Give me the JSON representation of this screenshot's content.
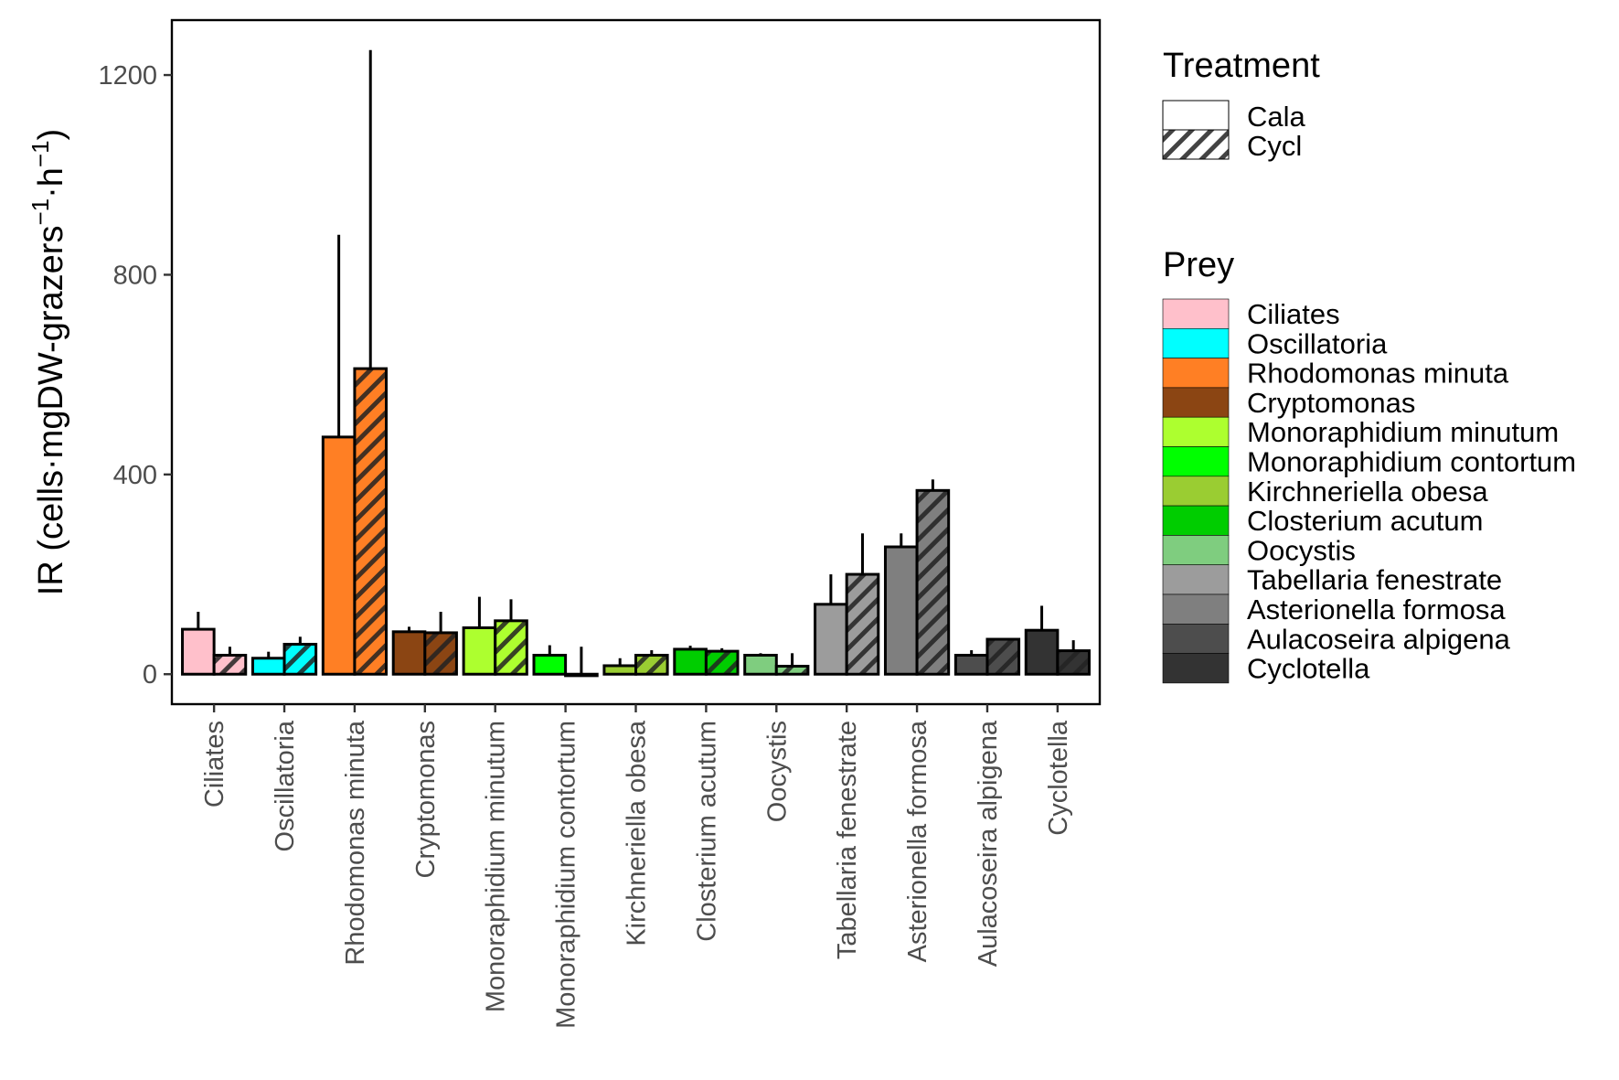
{
  "chart_data": {
    "type": "bar",
    "ylabel": "IR (cells·mgDW-grazers⁻¹·h⁻¹)",
    "ylabel_parts": {
      "main": "IR (cells·mgDW-grazers",
      "sup1": "−1",
      "mid": "·h",
      "sup2": "−1",
      "end": ")"
    },
    "ylim": [
      -60,
      1310
    ],
    "yticks": [
      0,
      400,
      800,
      1200
    ],
    "ytick_labels": [
      "0",
      "400",
      "800",
      "1200"
    ],
    "grid": false,
    "categories": [
      "Ciliates",
      "Oscillatoria",
      "Rhodomonas minuta",
      "Cryptomonas",
      "Monoraphidium minutum",
      "Monoraphidium contortum",
      "Kirchneriella obesa",
      "Closterium acutum",
      "Oocystis",
      "Tabellaria fenestrate",
      "Asterionella formosa",
      "Aulacoseira alpigena",
      "Cyclotella"
    ],
    "colors": [
      "#FFC0CB",
      "#00FFFF",
      "#FF7F24",
      "#8B4513",
      "#ADFF2F",
      "#00FF00",
      "#9ACD32",
      "#00CD00",
      "#7FCD7F",
      "#9C9C9C",
      "#7F7F7F",
      "#4D4D4D",
      "#333333"
    ],
    "series": [
      {
        "name": "Cala",
        "values": [
          90,
          32,
          475,
          85,
          93,
          38,
          17,
          50,
          38,
          140,
          255,
          38,
          88
        ],
        "err_upper": [
          125,
          45,
          880,
          95,
          155,
          58,
          32,
          57,
          42,
          200,
          282,
          48,
          137
        ]
      },
      {
        "name": "Cycl",
        "values": [
          38,
          60,
          612,
          83,
          107,
          -3,
          38,
          46,
          16,
          200,
          368,
          70,
          47
        ],
        "err_upper": [
          55,
          75,
          1250,
          125,
          150,
          55,
          48,
          52,
          42,
          282,
          390,
          70,
          68
        ]
      }
    ],
    "legend_placement": "right",
    "legends": {
      "treatment": {
        "title": "Treatment",
        "entries": [
          "Cala",
          "Cycl"
        ]
      },
      "prey": {
        "title": "Prey",
        "entries": [
          "Ciliates",
          "Oscillatoria",
          "Rhodomonas minuta",
          "Cryptomonas",
          "Monoraphidium minutum",
          "Monoraphidium contortum",
          "Kirchneriella obesa",
          "Closterium acutum",
          "Oocystis",
          "Tabellaria fenestrate",
          "Asterionella formosa",
          "Aulacoseira alpigena",
          "Cyclotella"
        ]
      }
    }
  }
}
